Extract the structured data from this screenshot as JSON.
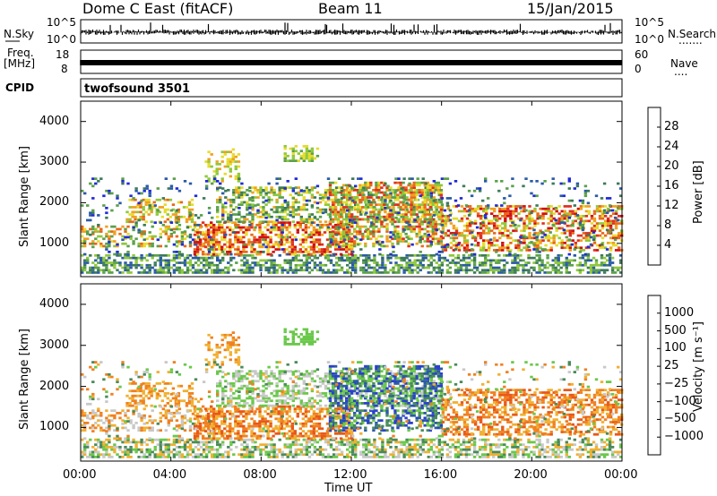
{
  "header": {
    "title": "Dome C East (fitACF)",
    "beam": "Beam 11",
    "date": "15/Jan/2015"
  },
  "side_labels": {
    "nsky": "N.Sky",
    "nsearch": "N.Search",
    "nsearch_dots": ".......",
    "freq": "Freq.",
    "freq_unit": "[MHz]",
    "nave": "Nave",
    "nave_dots": "....",
    "cpid": "CPID"
  },
  "mini_ticks": {
    "nsky_left_top": "10^5",
    "nsky_left_bottom": "10^0",
    "nsky_right_top": "10^5",
    "nsky_right_bottom": "10^0",
    "freq_left_top": "18",
    "freq_left_bottom": "8",
    "nave_right_top": "60",
    "nave_right_bottom": "0"
  },
  "cpid_text": "twofsound 3501",
  "colors": {
    "power": [
      "#1f2bd6",
      "#2a5aa8",
      "#3d7a5a",
      "#5aa04a",
      "#8ec83a",
      "#e6dc2a",
      "#f0a020",
      "#e86818",
      "#e03020",
      "#d01010"
    ],
    "velocity": [
      "#2a3fd0",
      "#2a5aa8",
      "#4a8a5a",
      "#6ac84a",
      "#c8c8c8",
      "#f0b030",
      "#f08020",
      "#e85818",
      "#e01818"
    ]
  },
  "chart_data": [
    {
      "type": "heatmap",
      "title": "",
      "ylabel": "Slant Range [km]",
      "xlabel": "",
      "ylim": [
        180,
        4500
      ],
      "xlim": [
        "00:00",
        "24:00"
      ],
      "x_ticks": [
        "00:00",
        "04:00",
        "08:00",
        "12:00",
        "16:00",
        "20:00",
        "00:00"
      ],
      "y_ticks": [
        "1000",
        "2000",
        "3000",
        "4000"
      ],
      "colorbar": {
        "label": "Power [dB]",
        "ticks": [
          "4",
          "8",
          "12",
          "16",
          "20",
          "24",
          "28"
        ]
      }
    },
    {
      "type": "heatmap",
      "title": "",
      "ylabel": "Slant Range [km]",
      "xlabel": "Time UT",
      "ylim": [
        180,
        4500
      ],
      "xlim": [
        "00:00",
        "24:00"
      ],
      "x_ticks": [
        "00:00",
        "04:00",
        "08:00",
        "12:00",
        "16:00",
        "20:00",
        "00:00"
      ],
      "y_ticks": [
        "1000",
        "2000",
        "3000",
        "4000"
      ],
      "colorbar": {
        "label": "Velocity [m s⁻¹]",
        "ticks": [
          "1000",
          "500",
          "100",
          "25",
          "−25",
          "−100",
          "−500",
          "−1000"
        ]
      }
    }
  ]
}
